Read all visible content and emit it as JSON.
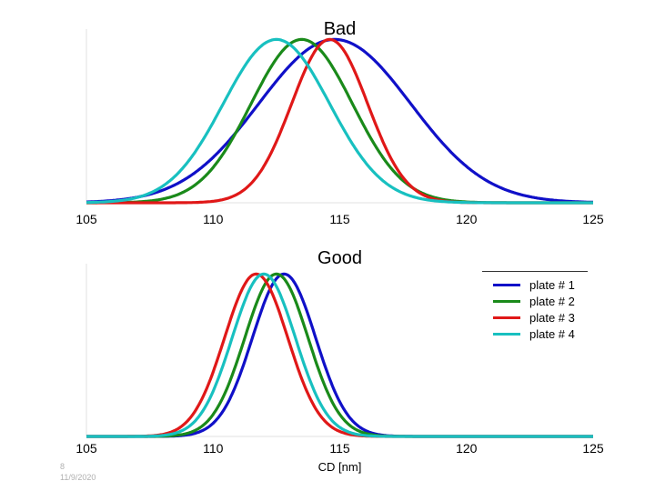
{
  "chart_data": [
    {
      "type": "line",
      "title": "Bad",
      "xlabel": "",
      "ylabel": "",
      "xlim": [
        105,
        125
      ],
      "ylim": [
        0,
        1.03
      ],
      "x_ticks": [
        "105",
        "110",
        "115",
        "120",
        "125"
      ],
      "grid": false,
      "series": [
        {
          "name": "plate # 1",
          "color": "#1010c8",
          "mean": 114.8,
          "sd": 3.0
        },
        {
          "name": "plate # 2",
          "color": "#1a8a1a",
          "mean": 113.5,
          "sd": 2.0
        },
        {
          "name": "plate # 3",
          "color": "#e01818",
          "mean": 114.6,
          "sd": 1.5
        },
        {
          "name": "plate # 4",
          "color": "#18c0c0",
          "mean": 112.5,
          "sd": 2.1
        }
      ]
    },
    {
      "type": "line",
      "title": "Good",
      "xlabel": "CD [nm]",
      "ylabel": "",
      "xlim": [
        105,
        125
      ],
      "ylim": [
        0,
        1.03
      ],
      "x_ticks": [
        "105",
        "110",
        "115",
        "120",
        "125"
      ],
      "grid": false,
      "legend": "top-right",
      "series": [
        {
          "name": "plate # 1",
          "color": "#1010c8",
          "mean": 112.8,
          "sd": 1.25
        },
        {
          "name": "plate # 2",
          "color": "#1a8a1a",
          "mean": 112.5,
          "sd": 1.25
        },
        {
          "name": "plate # 3",
          "color": "#e01818",
          "mean": 111.7,
          "sd": 1.25
        },
        {
          "name": "plate # 4",
          "color": "#18c0c0",
          "mean": 112.0,
          "sd": 1.25
        }
      ]
    }
  ],
  "footer": {
    "slide_number": "8",
    "date": "11/9/2020"
  }
}
